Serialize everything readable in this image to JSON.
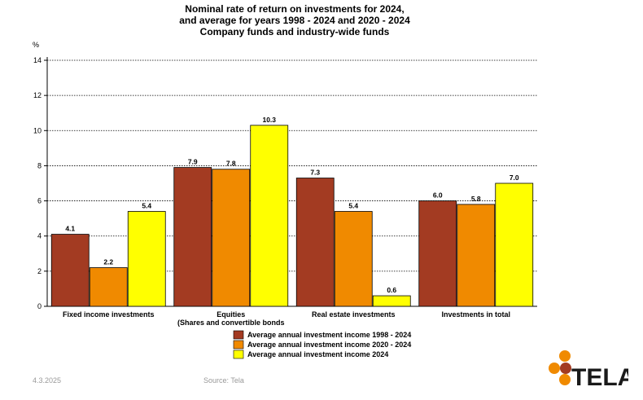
{
  "chart_data": {
    "type": "bar",
    "title": [
      "Nominal rate of return on investments for  2024,",
      "and average for years 1998 - 2024 and 2020 - 2024",
      "Company funds and industry-wide funds"
    ],
    "ylabel": "%",
    "ylim": [
      0,
      14
    ],
    "yticks": [
      0,
      2,
      4,
      6,
      8,
      10,
      12,
      14
    ],
    "grid": true,
    "legend_position": "bottom-center",
    "categories": [
      [
        "Fixed income investments"
      ],
      [
        "Equities",
        "(Shares and  convertible bonds"
      ],
      [
        "Real estate investments"
      ],
      [
        "Investments  in total"
      ]
    ],
    "series": [
      {
        "name": "Average annual investment income 1998 - 2024",
        "color": "#a33b22",
        "values": [
          4.1,
          7.9,
          7.3,
          6.0
        ],
        "labels": [
          "4.1",
          "7.9",
          "7.3",
          "6.0"
        ]
      },
      {
        "name": "Average annual investment income 2020 - 2024",
        "color": "#f08a00",
        "values": [
          2.2,
          7.8,
          5.4,
          5.8
        ],
        "labels": [
          "2.2",
          "7.8",
          "5.4",
          "5.8"
        ]
      },
      {
        "name": "Average annual investment income 2024",
        "color": "#ffff00",
        "values": [
          5.4,
          10.3,
          0.6,
          7.0
        ],
        "labels": [
          "5.4",
          "10.3",
          "0.6",
          "7.0"
        ]
      }
    ]
  },
  "footer": {
    "date": "4.3.2025",
    "source": "Source: Tela"
  },
  "logo": {
    "text": "TELA",
    "colors": [
      "#f08a00",
      "#a33b22",
      "#1a1a1a"
    ]
  }
}
